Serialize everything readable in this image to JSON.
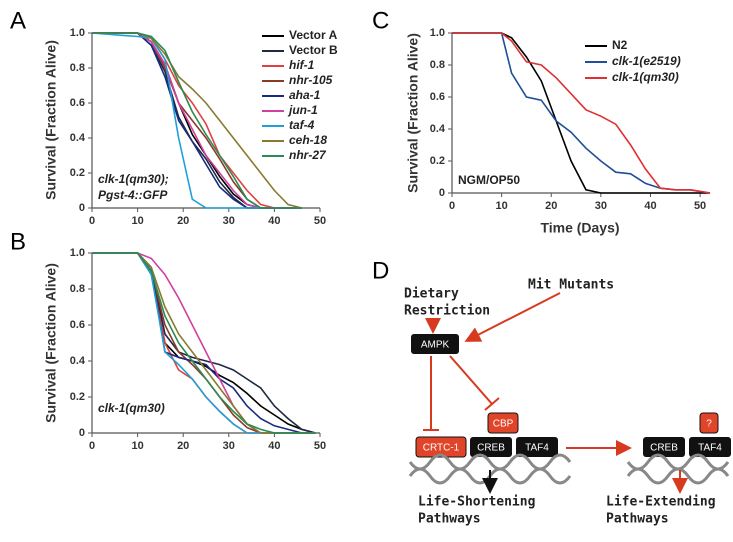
{
  "chart_data": [
    {
      "type": "line",
      "panel": "A",
      "ylabel": "Survival (Fraction Alive)",
      "annotations": [
        "clk-1(qm30);",
        "Pgst-4::GFP"
      ],
      "x": [
        0,
        10,
        13,
        16,
        19,
        22,
        25,
        28,
        31,
        34,
        37,
        40,
        43,
        46
      ],
      "xlim": [
        0,
        50
      ],
      "xticks": [
        0,
        10,
        20,
        30,
        40,
        50
      ],
      "ylim": [
        0,
        1
      ],
      "yticks": [
        0,
        0.2,
        0.4,
        0.6,
        0.8,
        {
          "value": 1,
          "label": "1.0"
        }
      ],
      "series": [
        {
          "name": "Vector A",
          "color": "#000000",
          "values": [
            1,
            1,
            0.95,
            0.82,
            0.6,
            0.42,
            0.3,
            0.18,
            0.08,
            0.02,
            0,
            0,
            0,
            0
          ]
        },
        {
          "name": "Vector B",
          "color": "#1f2a44",
          "values": [
            1,
            1,
            0.93,
            0.78,
            0.52,
            0.38,
            0.28,
            0.15,
            0.06,
            0,
            0,
            0,
            0,
            0
          ]
        },
        {
          "name": "hif-1",
          "color": "#e04040",
          "values": [
            1,
            1,
            0.97,
            0.85,
            0.7,
            0.6,
            0.48,
            0.3,
            0.2,
            0.1,
            0.02,
            0,
            0,
            0
          ]
        },
        {
          "name": "nhr-105",
          "color": "#8b3a2a",
          "values": [
            1,
            1,
            0.95,
            0.8,
            0.6,
            0.5,
            0.4,
            0.28,
            0.15,
            0.05,
            0,
            0,
            0,
            0
          ]
        },
        {
          "name": "aha-1",
          "color": "#1a2a80",
          "values": [
            1,
            1,
            0.93,
            0.75,
            0.5,
            0.38,
            0.25,
            0.12,
            0.05,
            0,
            0,
            0,
            0,
            0
          ]
        },
        {
          "name": "jun-1",
          "color": "#d040a0",
          "values": [
            1,
            1,
            0.95,
            0.82,
            0.6,
            0.45,
            0.3,
            0.2,
            0.1,
            0.02,
            0,
            0,
            0,
            0
          ]
        },
        {
          "name": "taf-4",
          "color": "#20a0d8",
          "values": [
            1,
            0.98,
            0.97,
            0.85,
            0.4,
            0.05,
            0,
            0,
            0,
            0,
            0,
            0,
            0,
            0
          ]
        },
        {
          "name": "ceh-18",
          "color": "#8a7a30",
          "values": [
            1,
            1,
            0.97,
            0.88,
            0.75,
            0.68,
            0.6,
            0.5,
            0.4,
            0.3,
            0.2,
            0.1,
            0.02,
            0
          ]
        },
        {
          "name": "nhr-27",
          "color": "#2a8a50",
          "values": [
            1,
            1,
            0.98,
            0.9,
            0.72,
            0.55,
            0.42,
            0.3,
            0.18,
            0.05,
            0,
            0,
            0,
            0
          ]
        }
      ]
    },
    {
      "type": "line",
      "panel": "B",
      "ylabel": "Survival (Fraction Alive)",
      "annotations": [
        "clk-1(qm30)"
      ],
      "x": [
        0,
        10,
        13,
        16,
        19,
        22,
        25,
        28,
        31,
        34,
        37,
        40,
        43,
        46,
        49
      ],
      "xlim": [
        0,
        50
      ],
      "xticks": [
        0,
        10,
        20,
        30,
        40,
        50
      ],
      "ylim": [
        0,
        1
      ],
      "yticks": [
        0,
        0.2,
        0.4,
        0.6,
        0.8,
        {
          "value": 1,
          "label": "1.0"
        }
      ],
      "series": [
        {
          "color": "#000000",
          "values": [
            1,
            1,
            0.9,
            0.5,
            0.42,
            0.4,
            0.37,
            0.32,
            0.28,
            0.22,
            0.15,
            0.1,
            0.05,
            0.02,
            0
          ]
        },
        {
          "color": "#1f2a44",
          "values": [
            1,
            1,
            0.92,
            0.55,
            0.45,
            0.42,
            0.4,
            0.38,
            0.35,
            0.3,
            0.25,
            0.15,
            0.08,
            0.02,
            0
          ]
        },
        {
          "color": "#e04040",
          "values": [
            1,
            1,
            0.88,
            0.5,
            0.35,
            0.3,
            0.2,
            0.12,
            0.05,
            0,
            0,
            0,
            0,
            0,
            0
          ]
        },
        {
          "color": "#8b3a2a",
          "values": [
            1,
            1,
            0.9,
            0.6,
            0.45,
            0.38,
            0.3,
            0.2,
            0.1,
            0.03,
            0,
            0,
            0,
            0,
            0
          ]
        },
        {
          "color": "#1a2a80",
          "values": [
            1,
            1,
            0.9,
            0.45,
            0.42,
            0.4,
            0.38,
            0.3,
            0.25,
            0.15,
            0.08,
            0.04,
            0.02,
            0,
            0
          ]
        },
        {
          "color": "#d040a0",
          "values": [
            1,
            1,
            0.97,
            0.88,
            0.75,
            0.6,
            0.45,
            0.3,
            0.15,
            0.05,
            0,
            0,
            0,
            0,
            0
          ]
        },
        {
          "color": "#20a0d8",
          "values": [
            1,
            1,
            0.88,
            0.45,
            0.38,
            0.3,
            0.2,
            0.12,
            0.05,
            0,
            0,
            0,
            0,
            0,
            0
          ]
        },
        {
          "color": "#8a7a30",
          "values": [
            1,
            1,
            0.92,
            0.7,
            0.55,
            0.45,
            0.35,
            0.25,
            0.15,
            0.05,
            0,
            0,
            0,
            0,
            0
          ]
        },
        {
          "color": "#2a8a50",
          "values": [
            1,
            1,
            0.9,
            0.65,
            0.5,
            0.4,
            0.3,
            0.2,
            0.12,
            0.05,
            0.02,
            0,
            0,
            0,
            0
          ]
        }
      ]
    },
    {
      "type": "line",
      "panel": "C",
      "ylabel": "Survival (Fraction Alive)",
      "xlabel": "Time (Days)",
      "annotations": [
        "NGM/OP50"
      ],
      "x": [
        0,
        10,
        12,
        15,
        18,
        21,
        24,
        27,
        30,
        33,
        36,
        39,
        42,
        45,
        48,
        52
      ],
      "xlim": [
        0,
        52
      ],
      "xticks": [
        0,
        10,
        20,
        30,
        40,
        50
      ],
      "ylim": [
        0,
        1
      ],
      "yticks": [
        0,
        0.2,
        0.4,
        0.6,
        0.8,
        {
          "value": 1,
          "label": "1.0"
        }
      ],
      "series": [
        {
          "name": "N2",
          "color": "#000000",
          "values": [
            1,
            1,
            0.97,
            0.85,
            0.7,
            0.45,
            0.2,
            0.02,
            0,
            0,
            0,
            0,
            0,
            0,
            0,
            0
          ]
        },
        {
          "name": "clk-1(e2519)",
          "color": "#1f4e9a",
          "values": [
            1,
            1,
            0.75,
            0.6,
            0.58,
            0.45,
            0.38,
            0.28,
            0.2,
            0.13,
            0.12,
            0.06,
            0.03,
            0.02,
            0.02,
            0
          ]
        },
        {
          "name": "clk-1(qm30)",
          "color": "#e03030",
          "values": [
            1,
            1,
            0.95,
            0.82,
            0.8,
            0.72,
            0.62,
            0.52,
            0.48,
            0.43,
            0.3,
            0.15,
            0.03,
            0.02,
            0.02,
            0
          ]
        }
      ]
    }
  ],
  "diagram": {
    "panel": "D",
    "dietary_restriction": [
      "Dietary",
      "Restriction"
    ],
    "mit_mutants": "Mit Mutants",
    "ampk": "AMPK",
    "cbp": "CBP",
    "left_complex": [
      "CRTC-1",
      "CREB",
      "TAF4"
    ],
    "right_complex": [
      "CREB",
      "TAF4"
    ],
    "unknown": "?",
    "left_outcome": [
      "Life-Shortening",
      "Pathways"
    ],
    "right_outcome": [
      "Life-Extending",
      "Pathways"
    ]
  }
}
